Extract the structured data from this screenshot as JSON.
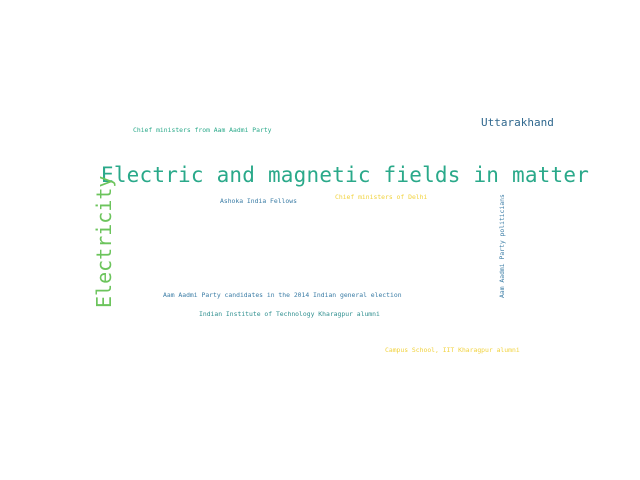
{
  "words": {
    "main_phrase": "Electric and magnetic fields in matter",
    "electricity": "Electricity",
    "uttarakhand": "Uttarakhand",
    "chief_ministers_aap": "Chief ministers from Aam Aadmi Party",
    "ashoka_fellows": "Ashoka India Fellows",
    "chief_ministers_delhi": "Chief ministers of Delhi",
    "aap_politicians": "Aam Aadmi Party politicians",
    "aap_candidates": "Aam Aadmi Party candidates in the 2014 Indian general election",
    "iit_alumni": "Indian Institute of Technology Kharagpur alumni",
    "campus_school": "Campus School, IIT Kharagpur alumni"
  },
  "colors": {
    "background": "#ffffff",
    "teal_green": "#2aa98a",
    "light_green": "#6cc45c",
    "dark_blue": "#30688e",
    "steel_blue": "#3a7ca5",
    "teal": "#2f8f8f",
    "yellow": "#f1d23c"
  }
}
